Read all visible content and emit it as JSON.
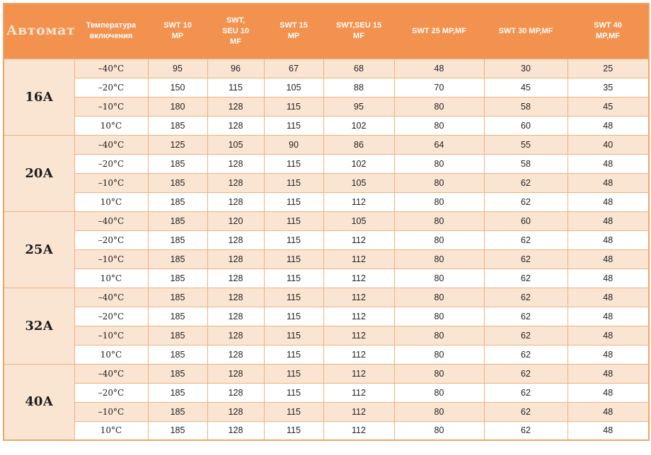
{
  "colors": {
    "header_bg": "#f2924e",
    "header_text": "#ffffff",
    "automat_header_text": "#fae6d6",
    "row_peach": "#fae5d3",
    "row_white": "#ffffff",
    "border": "#f1b07f",
    "value_text": "#222222"
  },
  "table": {
    "headers": [
      {
        "label": "Автомат"
      },
      {
        "label": "Температура\nвключения"
      },
      {
        "label": "SWT 10\nМР"
      },
      {
        "label": "SWT,\nSEU 10\nMF"
      },
      {
        "label": "SWT 15\nМР"
      },
      {
        "label": "SWT,SEU  15\nMF"
      },
      {
        "label": "SWT 25 МР,MF"
      },
      {
        "label": "SWT 30 МР,MF"
      },
      {
        "label": "SWT 40\nМР,MF"
      }
    ],
    "groups": [
      {
        "automat": "16А",
        "rows": [
          {
            "temp": "–40°C",
            "values": [
              95,
              96,
              67,
              68,
              48,
              30,
              25
            ]
          },
          {
            "temp": "–20°C",
            "values": [
              150,
              115,
              105,
              88,
              70,
              45,
              35
            ]
          },
          {
            "temp": "–10°C",
            "values": [
              180,
              128,
              115,
              95,
              80,
              58,
              45
            ]
          },
          {
            "temp": "10°C",
            "values": [
              185,
              128,
              115,
              102,
              80,
              60,
              48
            ]
          }
        ]
      },
      {
        "automat": "20А",
        "rows": [
          {
            "temp": "–40°C",
            "values": [
              125,
              105,
              90,
              86,
              64,
              55,
              40
            ]
          },
          {
            "temp": "–20°C",
            "values": [
              185,
              128,
              115,
              102,
              80,
              58,
              48
            ]
          },
          {
            "temp": "–10°C",
            "values": [
              185,
              128,
              115,
              105,
              80,
              62,
              48
            ]
          },
          {
            "temp": "10°C",
            "values": [
              185,
              128,
              115,
              112,
              80,
              62,
              48
            ]
          }
        ]
      },
      {
        "automat": "25А",
        "rows": [
          {
            "temp": "–40°C",
            "values": [
              185,
              120,
              115,
              105,
              80,
              60,
              48
            ]
          },
          {
            "temp": "–20°C",
            "values": [
              185,
              128,
              115,
              112,
              80,
              62,
              48
            ]
          },
          {
            "temp": "–10°C",
            "values": [
              185,
              128,
              115,
              112,
              80,
              62,
              48
            ]
          },
          {
            "temp": "10°C",
            "values": [
              185,
              128,
              115,
              112,
              80,
              62,
              48
            ]
          }
        ]
      },
      {
        "automat": "32А",
        "rows": [
          {
            "temp": "–40°C",
            "values": [
              185,
              128,
              115,
              112,
              80,
              62,
              48
            ]
          },
          {
            "temp": "–20°C",
            "values": [
              185,
              128,
              115,
              112,
              80,
              62,
              48
            ]
          },
          {
            "temp": "–10°C",
            "values": [
              185,
              128,
              115,
              112,
              80,
              62,
              48
            ]
          },
          {
            "temp": "10°C",
            "values": [
              185,
              128,
              115,
              112,
              80,
              62,
              48
            ]
          }
        ]
      },
      {
        "automat": "40А",
        "rows": [
          {
            "temp": "–40°C",
            "values": [
              185,
              128,
              115,
              112,
              80,
              62,
              48
            ]
          },
          {
            "temp": "–20°C",
            "values": [
              185,
              128,
              115,
              112,
              80,
              62,
              48
            ]
          },
          {
            "temp": "–10°C",
            "values": [
              185,
              128,
              115,
              112,
              80,
              62,
              48
            ]
          },
          {
            "temp": "10°C",
            "values": [
              185,
              128,
              115,
              112,
              80,
              62,
              48
            ]
          }
        ]
      }
    ]
  }
}
